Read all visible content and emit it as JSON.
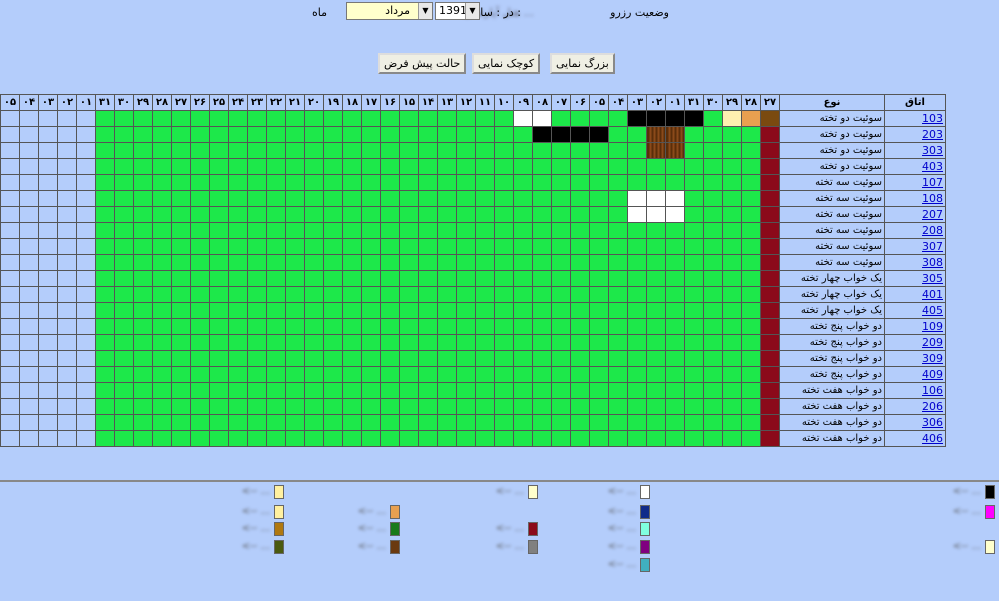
{
  "header": {
    "status_label": "وضعیت رزرو",
    "status_blur": "هتل آپارتمان ...",
    "in_year_label": "در : سال :",
    "year": "1391",
    "month": "مرداد",
    "month_label": "ماه"
  },
  "buttons": {
    "zoom_in": "بزرگ نمایی",
    "zoom_out": "کوچک نمایی",
    "default": "حالت پیش فرض"
  },
  "table": {
    "col_room": "اتاق",
    "col_type": "نوع",
    "days": [
      "۲۷",
      "۲۸",
      "۲۹",
      "۳۰",
      "۳۱",
      "۰۱",
      "۰۲",
      "۰۳",
      "۰۴",
      "۰۵",
      "۰۶",
      "۰۷",
      "۰۸",
      "۰۹",
      "۱۰",
      "۱۱",
      "۱۲",
      "۱۳",
      "۱۴",
      "۱۵",
      "۱۶",
      "۱۷",
      "۱۸",
      "۱۹",
      "۲۰",
      "۲۱",
      "۲۲",
      "۲۳",
      "۲۴",
      "۲۵",
      "۲۶",
      "۲۷",
      "۲۸",
      "۲۹",
      "۳۰",
      "۳۱",
      "۰۱",
      "۰۲",
      "۰۳",
      "۰۴",
      "۰۵"
    ],
    "rows": [
      {
        "room": "103",
        "type": "سوئیت دو تخته"
      },
      {
        "room": "203",
        "type": "سوئیت دو تخته"
      },
      {
        "room": "303",
        "type": "سوئیت دو تخته"
      },
      {
        "room": "403",
        "type": "سوئیت دو تخته"
      },
      {
        "room": "107",
        "type": "سوئیت سه تخته"
      },
      {
        "room": "108",
        "type": "سوئیت سه تخته"
      },
      {
        "room": "207",
        "type": "سوئیت سه تخته"
      },
      {
        "room": "208",
        "type": "سوئیت سه تخته"
      },
      {
        "room": "307",
        "type": "سوئیت سه تخته"
      },
      {
        "room": "308",
        "type": "سوئیت سه تخته"
      },
      {
        "room": "305",
        "type": "یک خواب چهار تخته"
      },
      {
        "room": "401",
        "type": "یک خواب چهار تخته"
      },
      {
        "room": "405",
        "type": "یک خواب چهار تخته"
      },
      {
        "room": "109",
        "type": "دو خواب پنج تخته"
      },
      {
        "room": "209",
        "type": "دو خواب پنج تخته"
      },
      {
        "room": "309",
        "type": "دو خواب پنج تخته"
      },
      {
        "room": "409",
        "type": "دو خواب پنج تخته"
      },
      {
        "room": "106",
        "type": "دو خواب هفت تخته"
      },
      {
        "room": "206",
        "type": "دو خواب هفت تخته"
      },
      {
        "room": "306",
        "type": "دو خواب هفت تخته"
      },
      {
        "room": "406",
        "type": "دو خواب هفت تخته"
      }
    ]
  },
  "legend": {
    "items": [
      {
        "color": "#000000",
        "label": "<-- ..."
      },
      {
        "color": "#ff00ff",
        "label": "<-- ..."
      },
      {
        "color": "#ffffcc",
        "label": "<-- ..."
      },
      {
        "color": "#ffffff",
        "label": "<-- ..."
      },
      {
        "color": "#102a8a",
        "label": "<-- ..."
      },
      {
        "color": "#80ffe0",
        "label": "<-- ..."
      },
      {
        "color": "#800080",
        "label": "<-- ..."
      },
      {
        "color": "#40b0c0",
        "label": "<-- ..."
      },
      {
        "color": "#ffffcc",
        "label": "<-- ..."
      },
      {
        "color": "#8b0a1a",
        "label": "<-- ..."
      },
      {
        "color": "#808080",
        "label": "<-- ..."
      },
      {
        "color": "#e8a050",
        "label": "<-- ..."
      },
      {
        "color": "#1a7a1a",
        "label": "<-- ..."
      },
      {
        "color": "#6a3a10",
        "label": "<-- ..."
      },
      {
        "color": "#fff0a0",
        "label": "<-- ..."
      },
      {
        "color": "#fff0a0",
        "label": "<-- ..."
      },
      {
        "color": "#b07810",
        "label": "<-- ..."
      },
      {
        "color": "#4a5a10",
        "label": "<-- ..."
      }
    ]
  }
}
